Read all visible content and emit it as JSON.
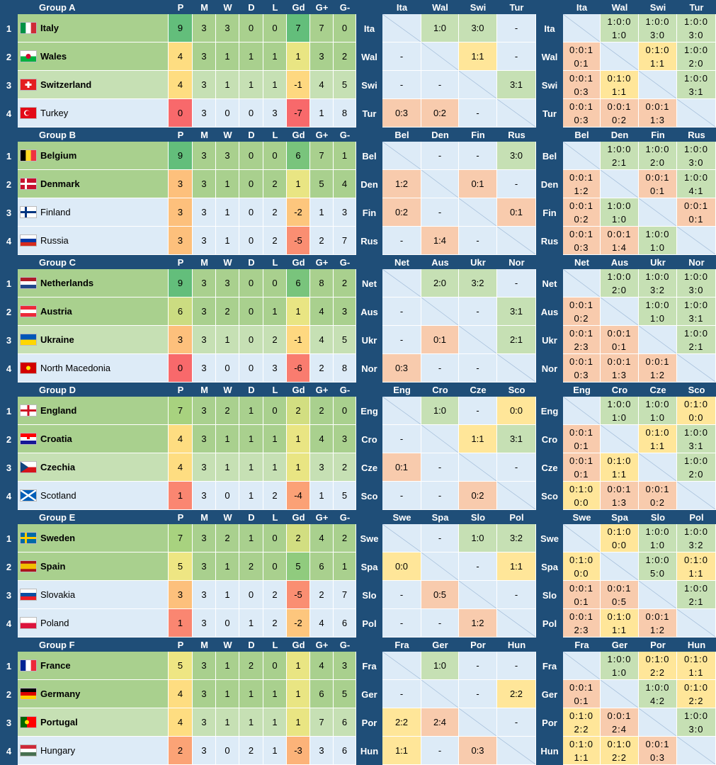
{
  "columns": [
    "P",
    "M",
    "W",
    "D",
    "L",
    "Gd",
    "G+",
    "G-"
  ],
  "groups": [
    {
      "name": "Group A",
      "teams": [
        {
          "rank": 1,
          "name": "Italy",
          "abbr": "Ita",
          "stats": [
            9,
            3,
            3,
            0,
            0,
            7,
            7,
            0
          ],
          "results": [
            null,
            "1:0",
            "3:0",
            "-"
          ],
          "records": [
            null,
            [
              "1:0:0",
              "1:0"
            ],
            [
              "1:0:0",
              "3:0"
            ],
            [
              "1:0:0",
              "3:0"
            ]
          ]
        },
        {
          "rank": 2,
          "name": "Wales",
          "abbr": "Wal",
          "stats": [
            4,
            3,
            1,
            1,
            1,
            1,
            3,
            2
          ],
          "results": [
            "-",
            null,
            "1:1",
            "-"
          ],
          "records": [
            [
              "0:0:1",
              "0:1"
            ],
            null,
            [
              "0:1:0",
              "1:1"
            ],
            [
              "1:0:0",
              "2:0"
            ]
          ]
        },
        {
          "rank": 3,
          "name": "Switzerland",
          "abbr": "Swi",
          "stats": [
            4,
            3,
            1,
            1,
            1,
            -1,
            4,
            5
          ],
          "results": [
            "-",
            "-",
            null,
            "3:1"
          ],
          "records": [
            [
              "0:0:1",
              "0:3"
            ],
            [
              "0:1:0",
              "1:1"
            ],
            null,
            [
              "1:0:0",
              "3:1"
            ]
          ]
        },
        {
          "rank": 4,
          "name": "Turkey",
          "abbr": "Tur",
          "stats": [
            0,
            3,
            0,
            0,
            3,
            -7,
            1,
            8
          ],
          "results": [
            "0:3",
            "0:2",
            "-",
            null
          ],
          "records": [
            [
              "0:0:1",
              "0:3"
            ],
            [
              "0:0:1",
              "0:2"
            ],
            [
              "0:0:1",
              "1:3"
            ],
            null
          ]
        }
      ]
    },
    {
      "name": "Group B",
      "teams": [
        {
          "rank": 1,
          "name": "Belgium",
          "abbr": "Bel",
          "stats": [
            9,
            3,
            3,
            0,
            0,
            6,
            7,
            1
          ],
          "results": [
            null,
            "-",
            "-",
            "3:0"
          ],
          "records": [
            null,
            [
              "1:0:0",
              "2:1"
            ],
            [
              "1:0:0",
              "2:0"
            ],
            [
              "1:0:0",
              "3:0"
            ]
          ]
        },
        {
          "rank": 2,
          "name": "Denmark",
          "abbr": "Den",
          "stats": [
            3,
            3,
            1,
            0,
            2,
            1,
            5,
            4
          ],
          "results": [
            "1:2",
            null,
            "0:1",
            "-"
          ],
          "records": [
            [
              "0:0:1",
              "1:2"
            ],
            null,
            [
              "0:0:1",
              "0:1"
            ],
            [
              "1:0:0",
              "4:1"
            ]
          ]
        },
        {
          "rank": 3,
          "name": "Finland",
          "abbr": "Fin",
          "stats": [
            3,
            3,
            1,
            0,
            2,
            -2,
            1,
            3
          ],
          "results": [
            "0:2",
            "-",
            null,
            "0:1"
          ],
          "records": [
            [
              "0:0:1",
              "0:2"
            ],
            [
              "1:0:0",
              "1:0"
            ],
            null,
            [
              "0:0:1",
              "0:1"
            ]
          ]
        },
        {
          "rank": 4,
          "name": "Russia",
          "abbr": "Rus",
          "stats": [
            3,
            3,
            1,
            0,
            2,
            -5,
            2,
            7
          ],
          "results": [
            "-",
            "1:4",
            "-",
            null
          ],
          "records": [
            [
              "0:0:1",
              "0:3"
            ],
            [
              "0:0:1",
              "1:4"
            ],
            [
              "1:0:0",
              "1:0"
            ],
            null
          ]
        }
      ]
    },
    {
      "name": "Group C",
      "teams": [
        {
          "rank": 1,
          "name": "Netherlands",
          "abbr": "Net",
          "stats": [
            9,
            3,
            3,
            0,
            0,
            6,
            8,
            2
          ],
          "results": [
            null,
            "2:0",
            "3:2",
            "-"
          ],
          "records": [
            null,
            [
              "1:0:0",
              "2:0"
            ],
            [
              "1:0:0",
              "3:2"
            ],
            [
              "1:0:0",
              "3:0"
            ]
          ]
        },
        {
          "rank": 2,
          "name": "Austria",
          "abbr": "Aus",
          "stats": [
            6,
            3,
            2,
            0,
            1,
            1,
            4,
            3
          ],
          "results": [
            "-",
            null,
            "-",
            "3:1"
          ],
          "records": [
            [
              "0:0:1",
              "0:2"
            ],
            null,
            [
              "1:0:0",
              "1:0"
            ],
            [
              "1:0:0",
              "3:1"
            ]
          ]
        },
        {
          "rank": 3,
          "name": "Ukraine",
          "abbr": "Ukr",
          "stats": [
            3,
            3,
            1,
            0,
            2,
            -1,
            4,
            5
          ],
          "results": [
            "-",
            "0:1",
            null,
            "2:1"
          ],
          "records": [
            [
              "0:0:1",
              "2:3"
            ],
            [
              "0:0:1",
              "0:1"
            ],
            null,
            [
              "1:0:0",
              "2:1"
            ]
          ]
        },
        {
          "rank": 4,
          "name": "North Macedonia",
          "abbr": "Nor",
          "stats": [
            0,
            3,
            0,
            0,
            3,
            -6,
            2,
            8
          ],
          "results": [
            "0:3",
            "-",
            "-",
            null
          ],
          "records": [
            [
              "0:0:1",
              "0:3"
            ],
            [
              "0:0:1",
              "1:3"
            ],
            [
              "0:0:1",
              "1:2"
            ],
            null
          ]
        }
      ]
    },
    {
      "name": "Group D",
      "teams": [
        {
          "rank": 1,
          "name": "England",
          "abbr": "Eng",
          "stats": [
            7,
            3,
            2,
            1,
            0,
            2,
            2,
            0
          ],
          "results": [
            null,
            "1:0",
            "-",
            "0:0"
          ],
          "records": [
            null,
            [
              "1:0:0",
              "1:0"
            ],
            [
              "1:0:0",
              "1:0"
            ],
            [
              "0:1:0",
              "0:0"
            ]
          ]
        },
        {
          "rank": 2,
          "name": "Croatia",
          "abbr": "Cro",
          "stats": [
            4,
            3,
            1,
            1,
            1,
            1,
            4,
            3
          ],
          "results": [
            "-",
            null,
            "1:1",
            "3:1"
          ],
          "records": [
            [
              "0:0:1",
              "0:1"
            ],
            null,
            [
              "0:1:0",
              "1:1"
            ],
            [
              "1:0:0",
              "3:1"
            ]
          ]
        },
        {
          "rank": 3,
          "name": "Czechia",
          "abbr": "Cze",
          "stats": [
            4,
            3,
            1,
            1,
            1,
            1,
            3,
            2
          ],
          "results": [
            "0:1",
            "-",
            null,
            "-"
          ],
          "records": [
            [
              "0:0:1",
              "0:1"
            ],
            [
              "0:1:0",
              "1:1"
            ],
            null,
            [
              "1:0:0",
              "2:0"
            ]
          ]
        },
        {
          "rank": 4,
          "name": "Scotland",
          "abbr": "Sco",
          "stats": [
            1,
            3,
            0,
            1,
            2,
            -4,
            1,
            5
          ],
          "results": [
            "-",
            "-",
            "0:2",
            null
          ],
          "records": [
            [
              "0:1:0",
              "0:0"
            ],
            [
              "0:0:1",
              "1:3"
            ],
            [
              "0:0:1",
              "0:2"
            ],
            null
          ]
        }
      ]
    },
    {
      "name": "Group E",
      "teams": [
        {
          "rank": 1,
          "name": "Sweden",
          "abbr": "Swe",
          "stats": [
            7,
            3,
            2,
            1,
            0,
            2,
            4,
            2
          ],
          "results": [
            null,
            "-",
            "1:0",
            "3:2"
          ],
          "records": [
            null,
            [
              "0:1:0",
              "0:0"
            ],
            [
              "1:0:0",
              "1:0"
            ],
            [
              "1:0:0",
              "3:2"
            ]
          ]
        },
        {
          "rank": 2,
          "name": "Spain",
          "abbr": "Spa",
          "stats": [
            5,
            3,
            1,
            2,
            0,
            5,
            6,
            1
          ],
          "results": [
            "0:0",
            null,
            "-",
            "1:1"
          ],
          "records": [
            [
              "0:1:0",
              "0:0"
            ],
            null,
            [
              "1:0:0",
              "5:0"
            ],
            [
              "0:1:0",
              "1:1"
            ]
          ]
        },
        {
          "rank": 3,
          "name": "Slovakia",
          "abbr": "Slo",
          "stats": [
            3,
            3,
            1,
            0,
            2,
            -5,
            2,
            7
          ],
          "results": [
            "-",
            "0:5",
            null,
            "-"
          ],
          "records": [
            [
              "0:0:1",
              "0:1"
            ],
            [
              "0:0:1",
              "0:5"
            ],
            null,
            [
              "1:0:0",
              "2:1"
            ]
          ]
        },
        {
          "rank": 4,
          "name": "Poland",
          "abbr": "Pol",
          "stats": [
            1,
            3,
            0,
            1,
            2,
            -2,
            4,
            6
          ],
          "results": [
            "-",
            "-",
            "1:2",
            null
          ],
          "records": [
            [
              "0:0:1",
              "2:3"
            ],
            [
              "0:1:0",
              "1:1"
            ],
            [
              "0:0:1",
              "1:2"
            ],
            null
          ]
        }
      ]
    },
    {
      "name": "Group F",
      "teams": [
        {
          "rank": 1,
          "name": "France",
          "abbr": "Fra",
          "stats": [
            5,
            3,
            1,
            2,
            0,
            1,
            4,
            3
          ],
          "results": [
            null,
            "1:0",
            "-",
            "-"
          ],
          "records": [
            null,
            [
              "1:0:0",
              "1:0"
            ],
            [
              "0:1:0",
              "2:2"
            ],
            [
              "0:1:0",
              "1:1"
            ]
          ]
        },
        {
          "rank": 2,
          "name": "Germany",
          "abbr": "Ger",
          "stats": [
            4,
            3,
            1,
            1,
            1,
            1,
            6,
            5
          ],
          "results": [
            "-",
            null,
            "-",
            "2:2"
          ],
          "records": [
            [
              "0:0:1",
              "0:1"
            ],
            null,
            [
              "1:0:0",
              "4:2"
            ],
            [
              "0:1:0",
              "2:2"
            ]
          ]
        },
        {
          "rank": 3,
          "name": "Portugal",
          "abbr": "Por",
          "stats": [
            4,
            3,
            1,
            1,
            1,
            1,
            7,
            6
          ],
          "results": [
            "2:2",
            "2:4",
            null,
            "-"
          ],
          "records": [
            [
              "0:1:0",
              "2:2"
            ],
            [
              "0:0:1",
              "2:4"
            ],
            null,
            [
              "1:0:0",
              "3:0"
            ]
          ]
        },
        {
          "rank": 4,
          "name": "Hungary",
          "abbr": "Hun",
          "stats": [
            2,
            3,
            0,
            2,
            1,
            -3,
            3,
            6
          ],
          "results": [
            "1:1",
            "-",
            "0:3",
            null
          ],
          "records": [
            [
              "0:1:0",
              "1:1"
            ],
            [
              "0:1:0",
              "2:2"
            ],
            [
              "0:0:1",
              "0:3"
            ],
            null
          ]
        }
      ]
    }
  ]
}
